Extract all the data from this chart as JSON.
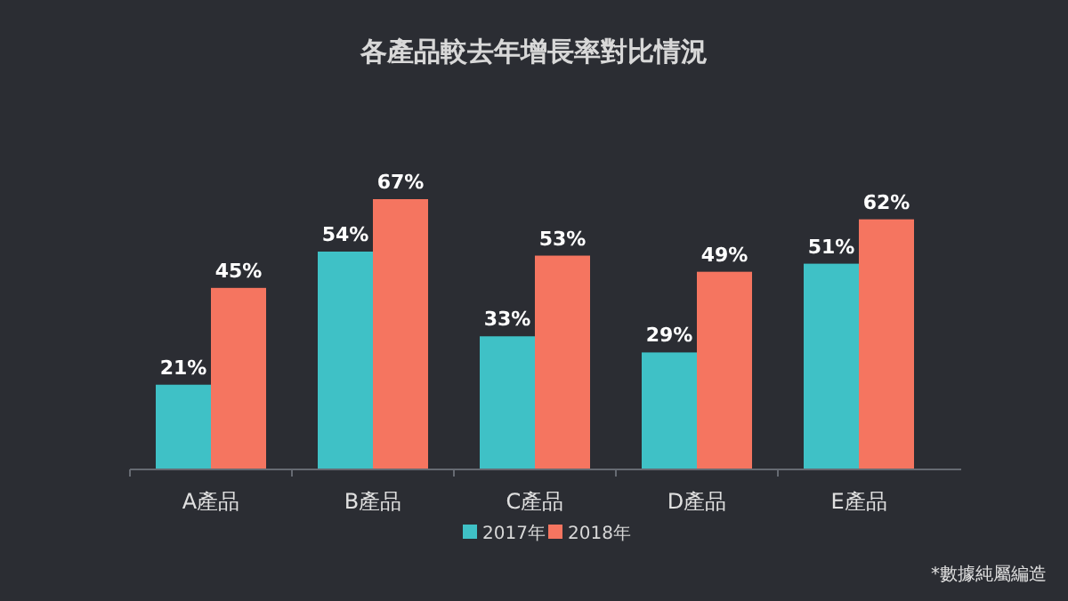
{
  "chart_data": {
    "type": "bar",
    "title": "各產品較去年增長率對比情況",
    "categories": [
      "A產品",
      "B產品",
      "C產品",
      "D產品",
      "E產品"
    ],
    "series": [
      {
        "name": "2017年",
        "color": "#3fc1c6",
        "values": [
          21,
          54,
          33,
          29,
          51
        ],
        "value_labels": [
          "21%",
          "54%",
          "33%",
          "29%",
          "51%"
        ]
      },
      {
        "name": "2018年",
        "color": "#f57560",
        "values": [
          45,
          67,
          53,
          49,
          62
        ],
        "value_labels": [
          "45%",
          "67%",
          "53%",
          "49%",
          "62%"
        ]
      }
    ],
    "legend": "bottom",
    "annotations": [
      "*數據純屬編造"
    ]
  }
}
